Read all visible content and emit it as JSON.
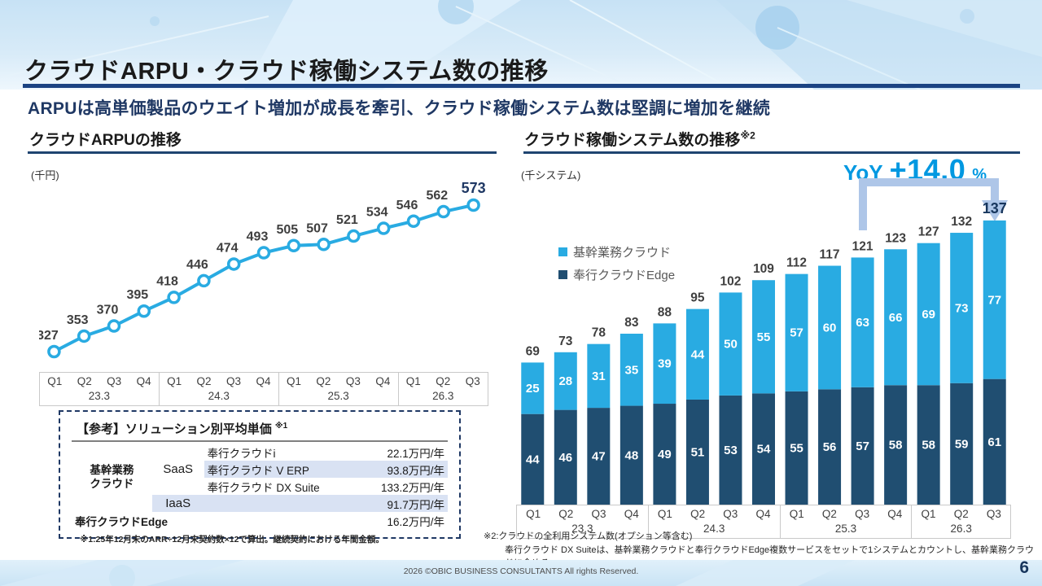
{
  "slide": {
    "title": "クラウドARPU・クラウド稼働システム数の推移",
    "subtitle": "ARPUは高単価製品のウエイト増加が成長を牽引、クラウド稼働システム数は堅調に増加を継続",
    "footer": "2026  ©OBIC BUSINESS CONSULTANTS All rights Reserved.",
    "page_number": "6"
  },
  "left_chart": {
    "heading": "クラウドARPUの推移",
    "unit_label": "(千円)"
  },
  "right_chart": {
    "heading": "クラウド稼働システム数の推移",
    "heading_note": "※2",
    "unit_label": "(千システム)",
    "legend": [
      {
        "label": "基幹業務クラウド",
        "color": "#29abe2"
      },
      {
        "label": "奉行クラウドEdge",
        "color": "#204e71"
      }
    ]
  },
  "chart_data": [
    {
      "type": "line",
      "title": "クラウドARPUの推移",
      "ylabel": "千円",
      "x_groups": [
        {
          "year": "23.3",
          "quarters": [
            "Q1",
            "Q2",
            "Q3",
            "Q4"
          ]
        },
        {
          "year": "24.3",
          "quarters": [
            "Q1",
            "Q2",
            "Q3",
            "Q4"
          ]
        },
        {
          "year": "25.3",
          "quarters": [
            "Q1",
            "Q2",
            "Q3",
            "Q4"
          ]
        },
        {
          "year": "26.3",
          "quarters": [
            "Q1",
            "Q2",
            "Q3"
          ]
        }
      ],
      "values": [
        327,
        353,
        370,
        395,
        418,
        446,
        474,
        493,
        505,
        507,
        521,
        534,
        546,
        562,
        573
      ],
      "line_color": "#29abe2",
      "label_color": "#3f3f3f",
      "highlight_last_color": "#1f3864",
      "ylim": [
        300,
        620
      ],
      "grid": false
    },
    {
      "type": "bar",
      "stacked": true,
      "title": "クラウド稼働システム数の推移",
      "ylabel": "千システム",
      "x_groups": [
        {
          "year": "23.3",
          "quarters": [
            "Q1",
            "Q2",
            "Q3",
            "Q4"
          ]
        },
        {
          "year": "24.3",
          "quarters": [
            "Q1",
            "Q2",
            "Q3",
            "Q4"
          ]
        },
        {
          "year": "25.3",
          "quarters": [
            "Q1",
            "Q2",
            "Q3",
            "Q4"
          ]
        },
        {
          "year": "26.3",
          "quarters": [
            "Q1",
            "Q2",
            "Q3"
          ]
        }
      ],
      "series": [
        {
          "name": "奉行クラウドEdge",
          "color": "#204e71",
          "values": [
            44,
            46,
            47,
            48,
            49,
            51,
            53,
            54,
            55,
            56,
            57,
            58,
            58,
            59,
            61
          ]
        },
        {
          "name": "基幹業務クラウド",
          "color": "#29abe2",
          "values": [
            25,
            28,
            31,
            35,
            39,
            44,
            50,
            55,
            57,
            60,
            63,
            66,
            69,
            73,
            77
          ]
        }
      ],
      "totals": [
        69,
        73,
        78,
        83,
        88,
        95,
        102,
        109,
        112,
        117,
        121,
        123,
        127,
        132,
        137
      ],
      "total_label_color": "#3f3f3f",
      "highlight_last_color": "#17365d",
      "yoy": {
        "label": "YoY",
        "value": "+14.0",
        "suffix": "%",
        "from_index": 10,
        "to_index": 14,
        "arrow_color": "#aec6e8"
      },
      "ylim": [
        0,
        150
      ],
      "grid": false,
      "legend_position": "upper-left"
    }
  ],
  "reference_table": {
    "title": "【参考】ソリューション別平均単価",
    "title_note": "※1",
    "group1": "基幹業務\nクラウド",
    "saas_label": "SaaS",
    "iaas_label": "IaaS",
    "rows": [
      {
        "product": "奉行クラウドi",
        "price": "22.1万円/年",
        "highlight": false
      },
      {
        "product": "奉行クラウド V ERP",
        "price": "93.8万円/年",
        "highlight": true
      },
      {
        "product": "奉行クラウド DX Suite",
        "price": "133.2万円/年",
        "highlight": false
      }
    ],
    "iaas_price": "91.7万円/年",
    "edge_label": "奉行クラウドEdge",
    "edge_price": "16.2万円/年",
    "footnote": "※1:25年12月末のARR÷12月末契約数×12で算出。継続契約における年間金額。"
  },
  "footnotes_right": {
    "line1": "※2:クラウドの全利用システム数(オプション等含む)",
    "line2": "奉行クラウド DX Suiteは、基幹業務クラウドと奉行クラウドEdge複数サービスをセットで1システムとカウントし、基幹業務クラウドに含める"
  }
}
